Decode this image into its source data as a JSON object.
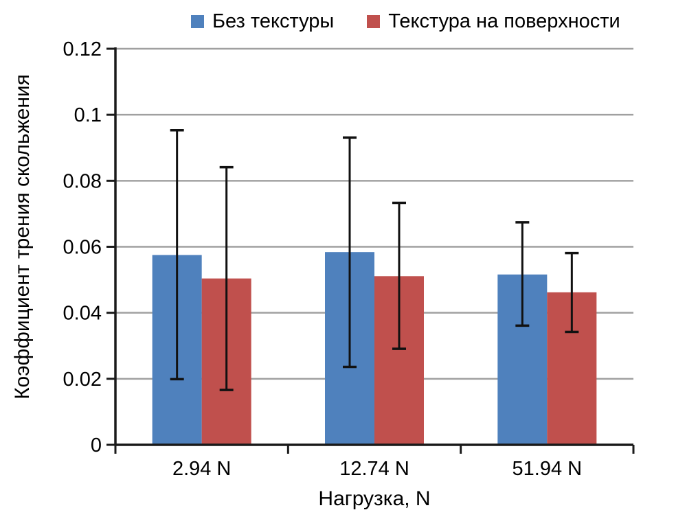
{
  "chart_data": {
    "type": "bar",
    "title": "",
    "categories": [
      "2.94 N",
      "12.74 N",
      "51.94 N"
    ],
    "series": [
      {
        "name": "Без текстуры",
        "color": "#4F81BD",
        "values": [
          0.0575,
          0.0584,
          0.0516
        ],
        "error_top": [
          0.0953,
          0.0931,
          0.0674
        ],
        "error_bottom": [
          0.0199,
          0.0236,
          0.0361
        ]
      },
      {
        "name": "Текстура на поверхности",
        "color": "#C0504D",
        "values": [
          0.0504,
          0.0511,
          0.0462
        ],
        "error_top": [
          0.0841,
          0.0733,
          0.0581
        ],
        "error_bottom": [
          0.0166,
          0.0291,
          0.0342
        ]
      }
    ],
    "xlabel": "Нагрузка, N",
    "ylabel": "Коэффициент трения скольжения",
    "ylim": [
      0,
      0.12
    ],
    "yticks": [
      "0",
      "0.02",
      "0.04",
      "0.06",
      "0.08",
      "0.1",
      "0.12"
    ],
    "grid": true,
    "legend_position": "top",
    "style": {
      "grid_color": "#A0A0A0",
      "axis_color": "#1A1A1A",
      "error_bar_color": "#111111",
      "text_color": "#000000",
      "background": "#FFFFFF"
    }
  }
}
